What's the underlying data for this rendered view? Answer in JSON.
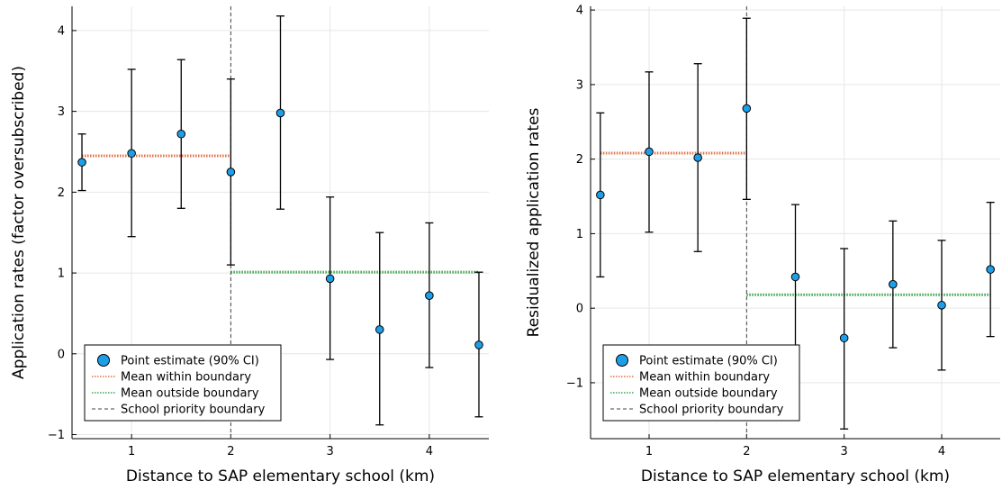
{
  "chart_data": [
    {
      "type": "scatter",
      "xlabel": "Distance to SAP elementary school (km)",
      "ylabel": "Application rates (factor oversubscribed)",
      "xlim": [
        0.4,
        4.6
      ],
      "ylim": [
        -1.05,
        4.3
      ],
      "xticks": [
        1,
        2,
        3,
        4
      ],
      "yticks": [
        -1,
        0,
        1,
        2,
        3,
        4
      ],
      "grid": true,
      "legend_position": "bottom-left",
      "series": [
        {
          "name": "Point estimate (90% CI)",
          "x": [
            0.5,
            1.0,
            1.5,
            2.0,
            2.5,
            3.0,
            3.5,
            4.0,
            4.5
          ],
          "y": [
            2.37,
            2.48,
            2.72,
            2.25,
            2.98,
            0.93,
            0.3,
            0.72,
            0.11
          ],
          "ci_low": [
            2.02,
            1.45,
            1.8,
            1.1,
            1.79,
            -0.07,
            -0.88,
            -0.17,
            -0.78
          ],
          "ci_high": [
            2.72,
            3.52,
            3.64,
            3.4,
            4.18,
            1.94,
            1.5,
            1.62,
            1.01
          ]
        }
      ],
      "mean_within": {
        "name": "Mean within boundary",
        "value": 2.45,
        "x_range": [
          0.5,
          2.0
        ]
      },
      "mean_outside": {
        "name": "Mean outside boundary",
        "value": 1.01,
        "x_range": [
          2.0,
          4.5
        ]
      },
      "boundary": {
        "name": "School priority boundary",
        "x": 2.0
      }
    },
    {
      "type": "scatter",
      "xlabel": "Distance to SAP elementary school (km)",
      "ylabel": "Residualized application rates",
      "xlim": [
        0.4,
        4.6
      ],
      "ylim": [
        -1.75,
        4.05
      ],
      "xticks": [
        1,
        2,
        3,
        4
      ],
      "yticks": [
        -1,
        0,
        1,
        2,
        3,
        4
      ],
      "grid": true,
      "legend_position": "bottom-left",
      "series": [
        {
          "name": "Point estimate (90% CI)",
          "x": [
            0.5,
            1.0,
            1.5,
            2.0,
            2.5,
            3.0,
            3.5,
            4.0,
            4.5
          ],
          "y": [
            1.52,
            2.1,
            2.02,
            2.68,
            0.42,
            -0.4,
            0.32,
            0.04,
            0.52
          ],
          "ci_low": [
            0.42,
            1.02,
            0.76,
            1.46,
            -0.53,
            -1.62,
            -0.53,
            -0.83,
            -0.38
          ],
          "ci_high": [
            2.62,
            3.17,
            3.28,
            3.89,
            1.39,
            0.8,
            1.17,
            0.91,
            1.42
          ]
        }
      ],
      "mean_within": {
        "name": "Mean within boundary",
        "value": 2.08,
        "x_range": [
          0.5,
          2.0
        ]
      },
      "mean_outside": {
        "name": "Mean outside boundary",
        "value": 0.18,
        "x_range": [
          2.0,
          4.5
        ]
      },
      "boundary": {
        "name": "School priority boundary",
        "x": 2.0
      }
    }
  ],
  "colors": {
    "points": "#1f9ee8",
    "mean_within": "#e26f46",
    "mean_outside": "#3da44d",
    "boundary": "#444444",
    "axis": "#000000",
    "grid": "#e6e6e6"
  }
}
